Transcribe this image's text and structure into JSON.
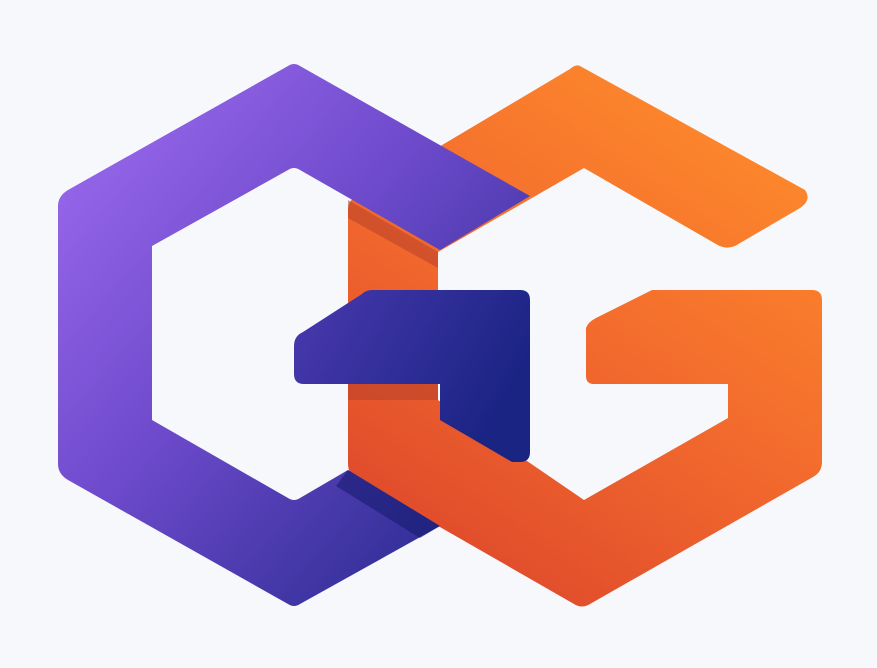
{
  "logo": {
    "name": "interlocked-hexagon-gg-logo",
    "shapes": [
      "left-hexagon-g",
      "right-hexagon-g"
    ],
    "colors": {
      "background": "#F7F8FB",
      "purple_light": "#A06BF0",
      "purple_mid": "#6A48C8",
      "navy": "#1B2585",
      "orange_light": "#FF8A2A",
      "orange_mid": "#F47A2E",
      "red_orange": "#DF4A2D",
      "shadow": "#8A2A1C"
    }
  }
}
